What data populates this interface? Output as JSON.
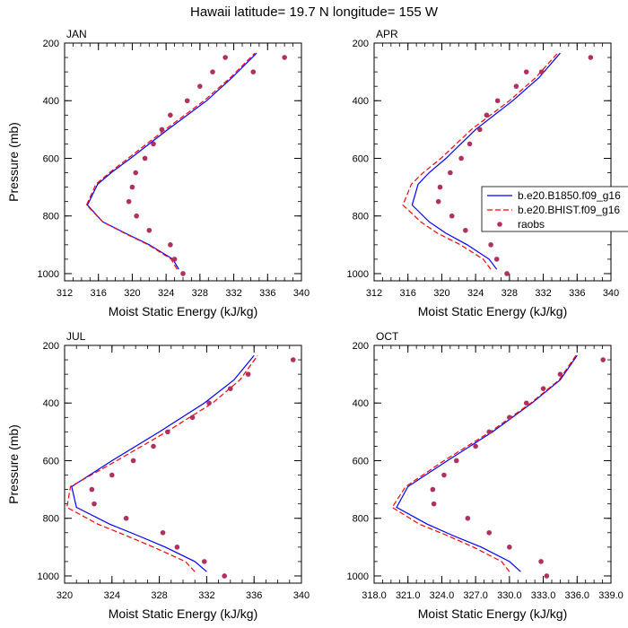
{
  "title": "Hawaii  latitude= 19.7 N longitude= 155 W",
  "colors": {
    "series1": "#0000ff",
    "series2": "#ff0000",
    "obs": "#b03060"
  },
  "legend": {
    "entries": [
      "b.e20.B1850.f09_g16",
      "b.e20.BHIST.f09_g16",
      "raobs"
    ]
  },
  "chart_data": [
    {
      "type": "line",
      "panel": "JAN",
      "xlabel": "Moist Static Energy (kJ/kg)",
      "ylabel": "Pressure (mb)",
      "xlim": [
        312,
        340
      ],
      "ylim": [
        200,
        1025
      ],
      "y_reversed": true,
      "xticks": [
        "312",
        "316",
        "320",
        "324",
        "328",
        "332",
        "336",
        "340"
      ],
      "xtick_values": [
        312,
        316,
        320,
        324,
        328,
        332,
        336,
        340
      ],
      "yticks": [
        "200",
        "400",
        "600",
        "800",
        "1000"
      ],
      "ytick_values": [
        200,
        400,
        600,
        800,
        1000
      ],
      "series": [
        {
          "type": "line",
          "style": "solid",
          "color": "#0000ff",
          "x": [
            325.5,
            324.8,
            322.0,
            319.2,
            316.5,
            314.7,
            315.9,
            317.5,
            319.8,
            324.2,
            328.8,
            331.8,
            334.7
          ],
          "y": [
            985,
            950,
            900,
            860,
            820,
            762,
            690,
            650,
            600,
            500,
            400,
            320,
            235
          ]
        },
        {
          "type": "line",
          "style": "dashed",
          "color": "#ff0000",
          "x": [
            325.3,
            324.6,
            321.9,
            319.1,
            316.5,
            314.6,
            315.7,
            317.3,
            319.5,
            323.9,
            328.5,
            331.6,
            334.5
          ],
          "y": [
            985,
            950,
            900,
            860,
            820,
            762,
            690,
            650,
            600,
            500,
            400,
            320,
            235
          ]
        },
        {
          "type": "scatter",
          "color": "#b03060",
          "x": [
            326.0,
            325.0,
            324.5,
            322.0,
            320.5,
            319.6,
            320.0,
            320.4,
            321.5,
            322.5,
            323.5,
            324.5,
            326.5,
            328.0,
            329.5,
            331.0,
            334.3,
            338.0
          ],
          "y": [
            1000,
            950,
            900,
            850,
            800,
            750,
            700,
            650,
            600,
            550,
            500,
            450,
            400,
            350,
            300,
            250,
            300,
            250
          ]
        }
      ]
    },
    {
      "type": "line",
      "panel": "APR",
      "xlabel": "Moist Static Energy (kJ/kg)",
      "ylabel": "",
      "xlim": [
        312,
        340
      ],
      "ylim": [
        200,
        1025
      ],
      "y_reversed": true,
      "xticks": [
        "312",
        "316",
        "320",
        "324",
        "328",
        "332",
        "336",
        "340"
      ],
      "xtick_values": [
        312,
        316,
        320,
        324,
        328,
        332,
        336,
        340
      ],
      "yticks": [
        "200",
        "400",
        "600",
        "800",
        "1000"
      ],
      "ytick_values": [
        200,
        400,
        600,
        800,
        1000
      ],
      "series": [
        {
          "type": "line",
          "style": "solid",
          "color": "#0000ff",
          "x": [
            326.5,
            325.6,
            323.0,
            320.5,
            318.5,
            316.5,
            317.2,
            318.5,
            320.5,
            324.0,
            328.4,
            331.5,
            334.0
          ],
          "y": [
            985,
            950,
            900,
            860,
            820,
            762,
            690,
            650,
            600,
            500,
            400,
            320,
            235
          ]
        },
        {
          "type": "line",
          "style": "dashed",
          "color": "#ff0000",
          "x": [
            325.8,
            324.9,
            322.2,
            319.5,
            317.5,
            315.4,
            316.4,
            317.8,
            319.9,
            323.5,
            328.0,
            331.1,
            333.7
          ],
          "y": [
            985,
            950,
            900,
            860,
            820,
            762,
            690,
            650,
            600,
            500,
            400,
            320,
            235
          ]
        },
        {
          "type": "scatter",
          "color": "#b03060",
          "x": [
            327.7,
            326.5,
            325.8,
            322.8,
            321.2,
            319.6,
            319.8,
            321.0,
            322.3,
            323.3,
            324.5,
            325.3,
            326.6,
            328.8,
            330.0,
            331.8,
            337.6
          ],
          "y": [
            1000,
            950,
            900,
            850,
            800,
            750,
            700,
            650,
            600,
            550,
            500,
            450,
            400,
            350,
            300,
            300,
            250
          ]
        }
      ]
    },
    {
      "type": "line",
      "panel": "JUL",
      "xlabel": "Moist Static Energy (kJ/kg)",
      "ylabel": "Pressure (mb)",
      "xlim": [
        320,
        340
      ],
      "ylim": [
        200,
        1025
      ],
      "y_reversed": true,
      "xticks": [
        "320",
        "324",
        "328",
        "332",
        "336",
        "340"
      ],
      "xtick_values": [
        320,
        324,
        328,
        332,
        336,
        340
      ],
      "yticks": [
        "200",
        "400",
        "600",
        "800",
        "1000"
      ],
      "ytick_values": [
        200,
        400,
        600,
        800,
        1000
      ],
      "series": [
        {
          "type": "line",
          "style": "solid",
          "color": "#0000ff",
          "x": [
            332.0,
            331.0,
            328.5,
            326.2,
            323.8,
            321.0,
            320.6,
            324.0,
            328.0,
            331.8,
            334.3,
            336.0
          ],
          "y": [
            985,
            950,
            900,
            860,
            820,
            762,
            690,
            600,
            500,
            400,
            320,
            235
          ]
        },
        {
          "type": "line",
          "style": "dashed",
          "color": "#ff0000",
          "x": [
            331.0,
            330.2,
            327.5,
            325.2,
            322.8,
            320.2,
            320.5,
            324.4,
            328.6,
            332.5,
            334.8,
            336.3
          ],
          "y": [
            985,
            950,
            900,
            860,
            820,
            762,
            690,
            600,
            500,
            400,
            320,
            235
          ]
        },
        {
          "type": "scatter",
          "color": "#b03060",
          "x": [
            333.5,
            331.8,
            329.5,
            328.3,
            325.2,
            322.5,
            322.3,
            324.0,
            325.8,
            327.5,
            328.7,
            330.8,
            332.2,
            334.0,
            335.5,
            339.3
          ],
          "y": [
            1000,
            950,
            900,
            850,
            800,
            750,
            700,
            650,
            600,
            550,
            500,
            450,
            400,
            350,
            300,
            250
          ]
        }
      ]
    },
    {
      "type": "line",
      "panel": "OCT",
      "xlabel": "Moist Static Energy (kJ/kg)",
      "ylabel": "",
      "xlim": [
        318.0,
        339.0
      ],
      "ylim": [
        200,
        1025
      ],
      "y_reversed": true,
      "xticks": [
        "318.0",
        "321.0",
        "324.0",
        "327.0",
        "330.0",
        "333.0",
        "336.0",
        "339.0"
      ],
      "xtick_values": [
        318,
        321,
        324,
        327,
        330,
        333,
        336,
        339
      ],
      "yticks": [
        "200",
        "400",
        "600",
        "800",
        "1000"
      ],
      "ytick_values": [
        200,
        400,
        600,
        800,
        1000
      ],
      "series": [
        {
          "type": "line",
          "style": "solid",
          "color": "#0000ff",
          "x": [
            331.0,
            330.0,
            327.5,
            325.0,
            322.7,
            320.0,
            321.0,
            324.5,
            328.5,
            332.0,
            334.5,
            336.0
          ],
          "y": [
            985,
            950,
            900,
            860,
            820,
            762,
            690,
            600,
            500,
            400,
            320,
            235
          ]
        },
        {
          "type": "line",
          "style": "dashed",
          "color": "#ff0000",
          "x": [
            330.0,
            329.3,
            326.8,
            324.5,
            322.0,
            319.6,
            320.8,
            324.2,
            328.3,
            331.9,
            334.4,
            335.9
          ],
          "y": [
            985,
            950,
            900,
            860,
            820,
            762,
            690,
            600,
            500,
            400,
            320,
            235
          ]
        },
        {
          "type": "scatter",
          "color": "#b03060",
          "x": [
            333.3,
            332.8,
            330.0,
            328.2,
            326.3,
            323.3,
            323.2,
            324.2,
            325.3,
            327.0,
            328.2,
            330.0,
            331.5,
            333.0,
            334.5,
            338.3
          ],
          "y": [
            1000,
            950,
            900,
            850,
            800,
            750,
            700,
            650,
            600,
            550,
            500,
            450,
            400,
            350,
            300,
            250
          ]
        }
      ]
    }
  ]
}
